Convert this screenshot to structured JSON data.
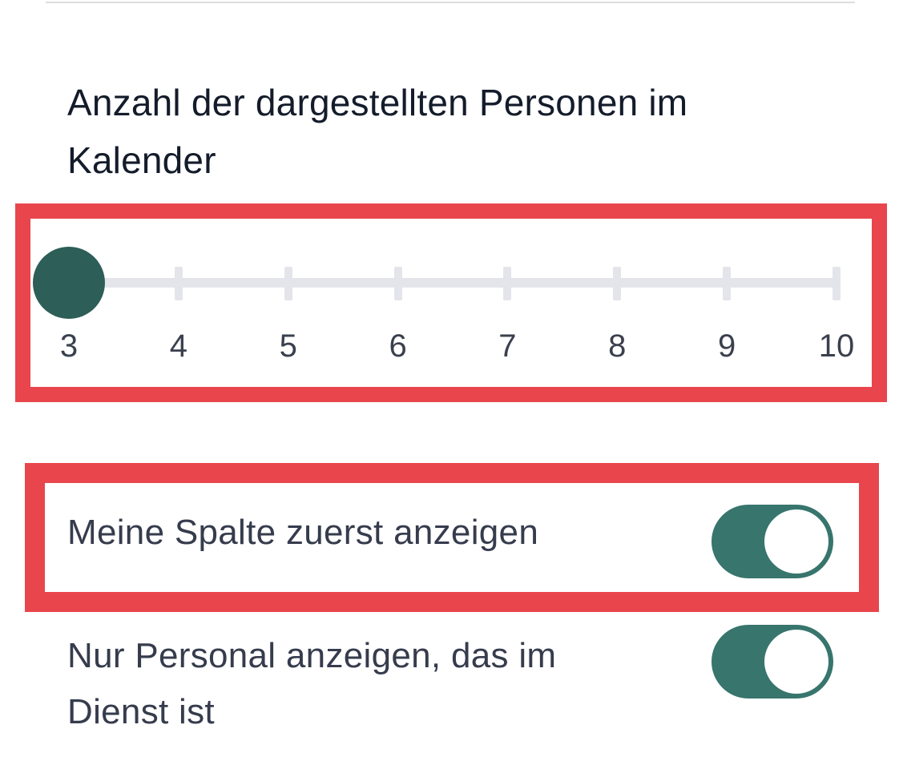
{
  "settings": {
    "persons_per_calendar": {
      "title": "Anzahl der dargestellten Personen im Kalender",
      "slider": {
        "min": 3,
        "max": 10,
        "value": 3,
        "labels": [
          "3",
          "4",
          "5",
          "6",
          "7",
          "8",
          "9",
          "10"
        ]
      }
    },
    "toggles": [
      {
        "label": "Meine Spalte zuerst anzeigen",
        "checked": true
      },
      {
        "label": "Nur Personal anzeigen, das im Dienst ist",
        "checked": true
      }
    ]
  },
  "colors": {
    "accent": "#37756d",
    "slider_thumb": "#2d5e58",
    "track": "#e4e5ea",
    "highlight": "#e8464c",
    "title_text": "#141c2b",
    "body_text": "#363c4d"
  }
}
